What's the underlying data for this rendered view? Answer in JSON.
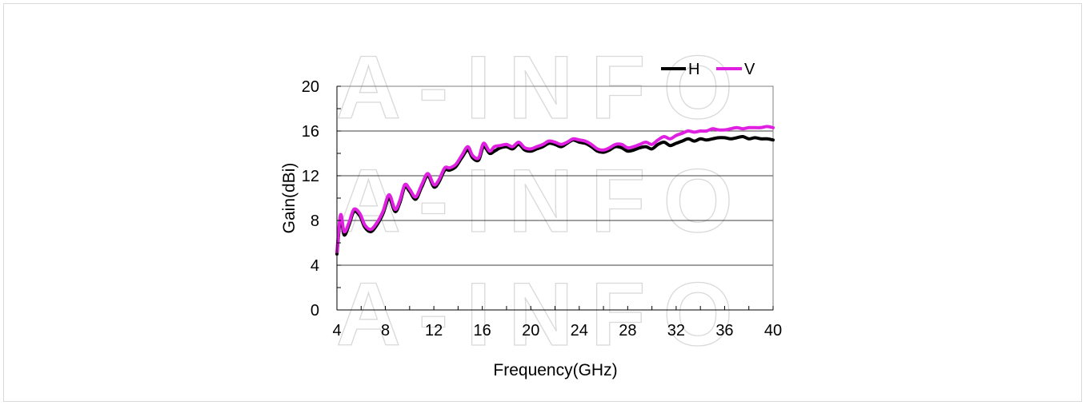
{
  "chart_data": {
    "type": "line",
    "title": "",
    "xlabel": "Frequency(GHz)",
    "ylabel": "Gain(dBi)",
    "xlim": [
      4,
      40
    ],
    "ylim": [
      0,
      20
    ],
    "xticks": [
      4,
      8,
      12,
      16,
      20,
      24,
      28,
      32,
      36,
      40
    ],
    "yticks": [
      0,
      4,
      8,
      12,
      16,
      20
    ],
    "grid": "horizontal",
    "legend_position": "top-right",
    "watermark": "A-INFO",
    "series": [
      {
        "name": "H",
        "color": "#000000",
        "x": [
          4,
          4.3,
          4.6,
          5,
          5.4,
          5.9,
          6.3,
          6.8,
          7.3,
          7.8,
          8.3,
          8.8,
          9.2,
          9.6,
          10,
          10.5,
          11,
          11.5,
          12,
          12.4,
          12.9,
          13.3,
          13.8,
          14.3,
          14.8,
          15.2,
          15.7,
          16.1,
          16.6,
          17,
          17.5,
          18,
          18.5,
          19,
          19.5,
          20,
          20.5,
          21,
          21.5,
          22,
          22.5,
          23,
          23.5,
          24,
          24.5,
          25,
          25.5,
          26,
          26.5,
          27,
          27.5,
          28,
          28.5,
          29,
          29.5,
          30,
          30.5,
          31,
          31.5,
          32,
          32.5,
          33,
          33.5,
          34,
          34.5,
          35,
          35.5,
          36,
          36.5,
          37,
          37.5,
          38,
          38.5,
          39,
          39.5,
          40
        ],
        "y": [
          5.0,
          8.2,
          6.7,
          7.6,
          8.8,
          8.4,
          7.4,
          7.0,
          7.6,
          8.6,
          10.0,
          8.8,
          9.6,
          11.0,
          10.6,
          9.9,
          11.0,
          12.0,
          11.0,
          11.4,
          12.5,
          12.5,
          12.8,
          13.6,
          14.3,
          13.6,
          13.4,
          14.6,
          14.0,
          14.2,
          14.5,
          14.6,
          14.4,
          14.8,
          14.3,
          14.2,
          14.4,
          14.6,
          14.9,
          14.8,
          14.6,
          14.9,
          15.2,
          15.0,
          14.9,
          14.6,
          14.2,
          14.1,
          14.3,
          14.6,
          14.5,
          14.2,
          14.3,
          14.5,
          14.6,
          14.4,
          14.8,
          15.0,
          14.7,
          14.9,
          15.1,
          15.3,
          15.1,
          15.3,
          15.2,
          15.3,
          15.4,
          15.4,
          15.3,
          15.4,
          15.5,
          15.3,
          15.4,
          15.3,
          15.3,
          15.2
        ]
      },
      {
        "name": "V",
        "color": "#e020e0",
        "x": [
          4,
          4.3,
          4.6,
          5,
          5.4,
          5.9,
          6.3,
          6.8,
          7.3,
          7.8,
          8.3,
          8.8,
          9.2,
          9.6,
          10,
          10.5,
          11,
          11.5,
          12,
          12.4,
          12.9,
          13.3,
          13.8,
          14.3,
          14.8,
          15.2,
          15.7,
          16.1,
          16.6,
          17,
          17.5,
          18,
          18.5,
          19,
          19.5,
          20,
          20.5,
          21,
          21.5,
          22,
          22.5,
          23,
          23.5,
          24,
          24.5,
          25,
          25.5,
          26,
          26.5,
          27,
          27.5,
          28,
          28.5,
          29,
          29.5,
          30,
          30.5,
          31,
          31.5,
          32,
          32.5,
          33,
          33.5,
          34,
          34.5,
          35,
          35.5,
          36,
          36.5,
          37,
          37.5,
          38,
          38.5,
          39,
          39.5,
          40
        ],
        "y": [
          5.2,
          8.5,
          7.0,
          7.8,
          9.0,
          8.6,
          7.6,
          7.2,
          7.8,
          8.8,
          10.3,
          9.0,
          9.8,
          11.2,
          10.8,
          10.1,
          11.2,
          12.2,
          11.2,
          11.6,
          12.7,
          12.7,
          13.0,
          13.8,
          14.6,
          13.8,
          13.6,
          14.9,
          14.2,
          14.6,
          14.7,
          14.8,
          14.6,
          15.0,
          14.5,
          14.4,
          14.6,
          14.8,
          15.1,
          15.0,
          14.8,
          15.0,
          15.3,
          15.2,
          15.1,
          14.8,
          14.4,
          14.3,
          14.5,
          14.8,
          14.8,
          14.5,
          14.6,
          14.8,
          15.0,
          14.8,
          15.2,
          15.5,
          15.3,
          15.6,
          15.8,
          16.0,
          15.9,
          16.0,
          16.0,
          16.2,
          16.1,
          16.1,
          16.2,
          16.3,
          16.2,
          16.3,
          16.3,
          16.3,
          16.4,
          16.3
        ]
      }
    ]
  }
}
